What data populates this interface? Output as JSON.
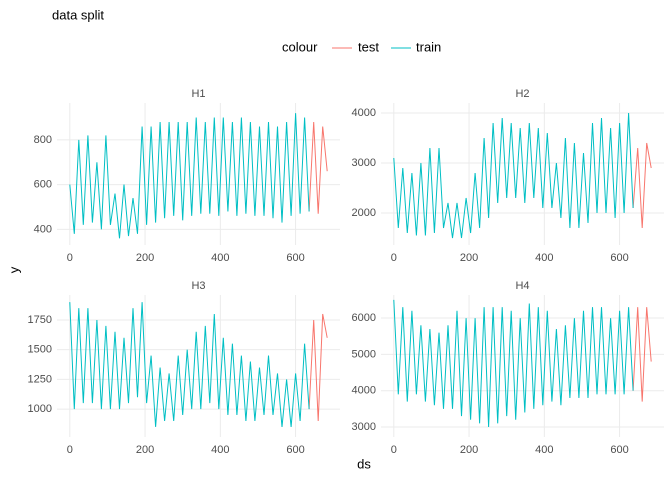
{
  "chart_data": {
    "type": "line",
    "title": "data split",
    "xlabel": "ds",
    "ylabel": "y",
    "legend_title": "colour",
    "legend_position": "top",
    "grid": true,
    "panels": [
      {
        "title": "H1",
        "xlim": [
          -34,
          718
        ],
        "ylim": [
          330,
          965
        ],
        "xticks": [
          0,
          200,
          400,
          600
        ],
        "yticks": [
          400,
          600,
          800
        ],
        "series": [
          {
            "name": "test",
            "color": "#F8766D",
            "x": [
              636,
              648,
              660,
              672,
              684
            ],
            "values": [
              480,
              880,
              470,
              860,
              660
            ]
          },
          {
            "name": "train",
            "color": "#00BFC4",
            "x": [
              0,
              12,
              24,
              36,
              48,
              60,
              72,
              84,
              96,
              108,
              120,
              132,
              144,
              156,
              168,
              180,
              192,
              204,
              216,
              228,
              240,
              252,
              264,
              276,
              288,
              300,
              312,
              324,
              336,
              348,
              360,
              372,
              384,
              396,
              408,
              420,
              432,
              444,
              456,
              468,
              480,
              492,
              504,
              516,
              528,
              540,
              552,
              564,
              576,
              588,
              600,
              612,
              624,
              636
            ],
            "values": [
              600,
              380,
              800,
              420,
              820,
              430,
              700,
              400,
              820,
              420,
              560,
              360,
              600,
              370,
              540,
              380,
              860,
              420,
              860,
              430,
              880,
              450,
              880,
              460,
              880,
              440,
              880,
              460,
              900,
              470,
              880,
              470,
              900,
              460,
              900,
              480,
              880,
              460,
              900,
              470,
              880,
              460,
              860,
              460,
              880,
              450,
              860,
              430,
              880,
              460,
              920,
              470,
              900,
              480
            ]
          }
        ]
      },
      {
        "title": "H2",
        "xlim": [
          -34,
          718
        ],
        "ylim": [
          1360,
          4200
        ],
        "xticks": [
          0,
          200,
          400,
          600
        ],
        "yticks": [
          2000,
          3000,
          4000
        ],
        "series": [
          {
            "name": "test",
            "color": "#F8766D",
            "x": [
              636,
              648,
              660,
              672,
              684
            ],
            "values": [
              2100,
              3300,
              1700,
              3400,
              2900
            ]
          },
          {
            "name": "train",
            "color": "#00BFC4",
            "x": [
              0,
              12,
              24,
              36,
              48,
              60,
              72,
              84,
              96,
              108,
              120,
              132,
              144,
              156,
              168,
              180,
              192,
              204,
              216,
              228,
              240,
              252,
              264,
              276,
              288,
              300,
              312,
              324,
              336,
              348,
              360,
              372,
              384,
              396,
              408,
              420,
              432,
              444,
              456,
              468,
              480,
              492,
              504,
              516,
              528,
              540,
              552,
              564,
              576,
              588,
              600,
              612,
              624,
              636
            ],
            "values": [
              3100,
              1700,
              2900,
              1600,
              2800,
              1550,
              3000,
              1550,
              3300,
              1600,
              3300,
              1700,
              2200,
              1500,
              2200,
              1500,
              2300,
              1600,
              2800,
              1700,
              3500,
              1900,
              3800,
              2200,
              3900,
              2300,
              3800,
              2300,
              3700,
              2200,
              3800,
              2300,
              3700,
              2100,
              3600,
              2100,
              3000,
              1900,
              3500,
              1700,
              3400,
              1700,
              3200,
              1800,
              3800,
              2000,
              3900,
              2000,
              3700,
              1900,
              3800,
              2000,
              4000,
              2100
            ]
          }
        ]
      },
      {
        "title": "H3",
        "xlim": [
          -34,
          718
        ],
        "ylim": [
          765,
          1960
        ],
        "xticks": [
          0,
          200,
          400,
          600
        ],
        "yticks": [
          1000,
          1250,
          1500,
          1750
        ],
        "series": [
          {
            "name": "test",
            "color": "#F8766D",
            "x": [
              636,
              648,
              660,
              672,
              684
            ],
            "values": [
              1000,
              1750,
              900,
              1800,
              1600
            ]
          },
          {
            "name": "train",
            "color": "#00BFC4",
            "x": [
              0,
              12,
              24,
              36,
              48,
              60,
              72,
              84,
              96,
              108,
              120,
              132,
              144,
              156,
              168,
              180,
              192,
              204,
              216,
              228,
              240,
              252,
              264,
              276,
              288,
              300,
              312,
              324,
              336,
              348,
              360,
              372,
              384,
              396,
              408,
              420,
              432,
              444,
              456,
              468,
              480,
              492,
              504,
              516,
              528,
              540,
              552,
              564,
              576,
              588,
              600,
              612,
              624,
              636
            ],
            "values": [
              1900,
              1000,
              1850,
              1050,
              1850,
              1050,
              1750,
              1000,
              1700,
              1000,
              1650,
              1000,
              1600,
              1050,
              1850,
              1100,
              1900,
              1050,
              1450,
              850,
              1350,
              900,
              1300,
              900,
              1450,
              950,
              1500,
              1000,
              1650,
              1000,
              1700,
              1050,
              1800,
              1000,
              1600,
              950,
              1550,
              950,
              1450,
              900,
              1400,
              900,
              1350,
              950,
              1450,
              950,
              1300,
              850,
              1250,
              850,
              1300,
              900,
              1550,
              1000
            ]
          }
        ]
      },
      {
        "title": "H4",
        "xlim": [
          -34,
          718
        ],
        "ylim": [
          2725,
          6635
        ],
        "xticks": [
          0,
          200,
          400,
          600
        ],
        "yticks": [
          3000,
          4000,
          5000,
          6000
        ],
        "series": [
          {
            "name": "test",
            "color": "#F8766D",
            "x": [
              636,
              648,
              660,
              672,
              684
            ],
            "values": [
              4000,
              6300,
              3700,
              6300,
              4800
            ]
          },
          {
            "name": "train",
            "color": "#00BFC4",
            "x": [
              0,
              12,
              24,
              36,
              48,
              60,
              72,
              84,
              96,
              108,
              120,
              132,
              144,
              156,
              168,
              180,
              192,
              204,
              216,
              228,
              240,
              252,
              264,
              276,
              288,
              300,
              312,
              324,
              336,
              348,
              360,
              372,
              384,
              396,
              408,
              420,
              432,
              444,
              456,
              468,
              480,
              492,
              504,
              516,
              528,
              540,
              552,
              564,
              576,
              588,
              600,
              612,
              624,
              636
            ],
            "values": [
              6500,
              3900,
              6300,
              3700,
              6200,
              3900,
              5800,
              3700,
              5700,
              3600,
              5600,
              3500,
              5800,
              3500,
              6200,
              3300,
              6000,
              3200,
              6000,
              3100,
              6300,
              3000,
              6300,
              3100,
              6300,
              3300,
              6200,
              3200,
              6000,
              3400,
              6400,
              3500,
              6300,
              3600,
              6200,
              3700,
              5700,
              3600,
              5800,
              3800,
              6000,
              3800,
              6200,
              3800,
              6300,
              3900,
              6300,
              3900,
              6000,
              3900,
              6200,
              3900,
              6300,
              4000
            ]
          }
        ]
      }
    ]
  }
}
